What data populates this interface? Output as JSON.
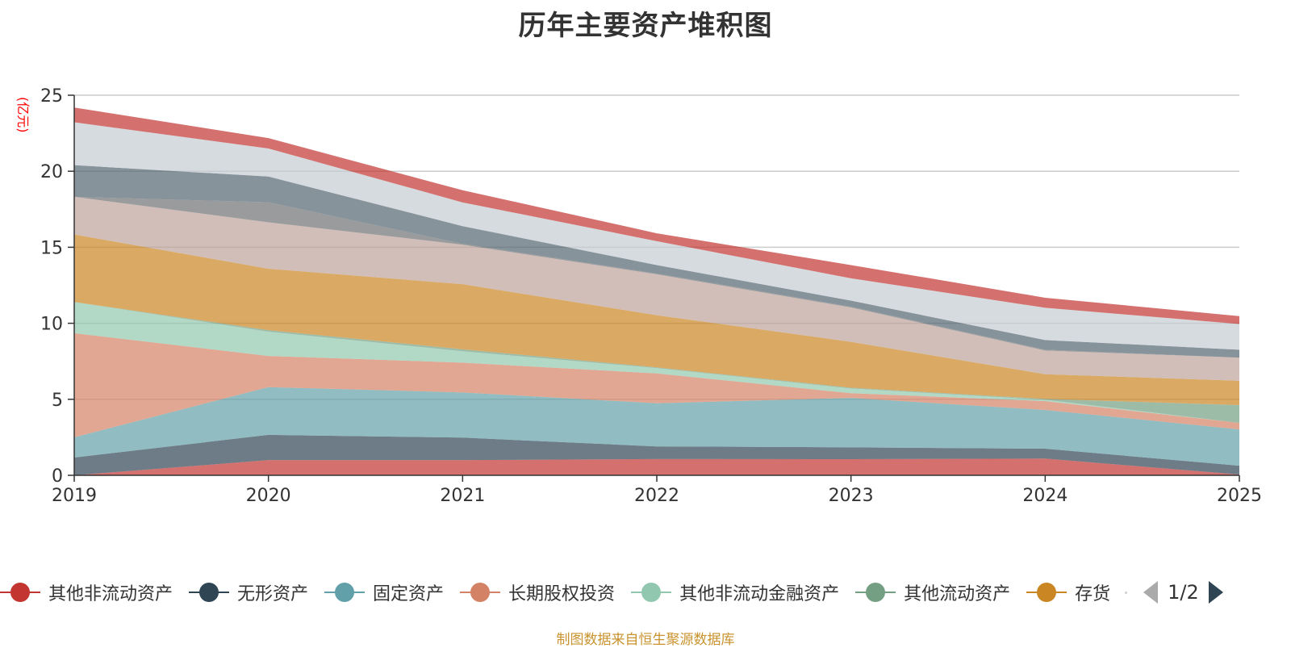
{
  "title": "历年主要资产堆积图",
  "unit_label": "(亿元)",
  "footer": "制图数据来自恒生聚源数据库",
  "pager": {
    "text": "1/2",
    "prev_label": "previous-page",
    "next_label": "next-page"
  },
  "legend": [
    {
      "name": "其他非流动资产",
      "color": "#c23531"
    },
    {
      "name": "无形资产",
      "color": "#2f4554"
    },
    {
      "name": "固定资产",
      "color": "#61a0a8"
    },
    {
      "name": "长期股权投资",
      "color": "#d48265"
    },
    {
      "name": "其他非流动金融资产",
      "color": "#91c7ae"
    },
    {
      "name": "其他流动资产",
      "color": "#749f83"
    },
    {
      "name": "存货",
      "color": "#ca8622"
    }
  ],
  "chart_data": {
    "type": "area",
    "stacked": true,
    "title": "历年主要资产堆积图",
    "xlabel": "",
    "ylabel": "(亿元)",
    "x": [
      "2019",
      "2020",
      "2021",
      "2022",
      "2023",
      "2024",
      "2025"
    ],
    "ylim": [
      0,
      25
    ],
    "yticks": [
      0,
      5,
      10,
      15,
      20,
      25
    ],
    "grid": true,
    "legend_position": "bottom",
    "series": [
      {
        "name": "其他非流动资产",
        "color": "#c23531",
        "values": [
          0.0,
          1.0,
          1.0,
          1.07,
          1.06,
          1.1,
          0.05
        ]
      },
      {
        "name": "无形资产",
        "color": "#2f4554",
        "values": [
          1.17,
          1.66,
          1.48,
          0.83,
          0.78,
          0.65,
          0.58
        ]
      },
      {
        "name": "固定资产",
        "color": "#61a0a8",
        "values": [
          1.33,
          3.14,
          2.97,
          2.84,
          3.25,
          2.55,
          2.39
        ]
      },
      {
        "name": "长期股权投资",
        "color": "#d48265",
        "values": [
          6.85,
          2.05,
          1.96,
          1.96,
          0.31,
          0.58,
          0.43
        ]
      },
      {
        "name": "其他非流动金融资产",
        "color": "#91c7ae",
        "values": [
          2.05,
          1.6,
          0.75,
          0.35,
          0.31,
          0.09,
          0.0
        ]
      },
      {
        "name": "其他流动资产",
        "color": "#749f83",
        "values": [
          0.0,
          0.1,
          0.13,
          0.05,
          0.05,
          0.05,
          1.17
        ]
      },
      {
        "name": "存货",
        "color": "#ca8622",
        "values": [
          4.44,
          4.04,
          4.28,
          3.43,
          3.02,
          1.63,
          1.6
        ]
      },
      {
        "name": null,
        "color": "#bda29a",
        "values": [
          2.48,
          3.05,
          2.6,
          2.69,
          2.26,
          1.56,
          1.52
        ]
      },
      {
        "name": null,
        "color": "#6e7074",
        "values": [
          0.0,
          1.32,
          0.06,
          0.05,
          0.05,
          0.05,
          0.0
        ]
      },
      {
        "name": null,
        "color": "#546570",
        "values": [
          2.08,
          1.69,
          1.16,
          0.56,
          0.4,
          0.64,
          0.52
        ]
      },
      {
        "name": null,
        "color": "#c4ccd3",
        "values": [
          2.82,
          1.85,
          1.56,
          1.57,
          1.47,
          2.12,
          1.69
        ]
      },
      {
        "name": null,
        "color": "#c23531",
        "values": [
          0.97,
          0.68,
          0.8,
          0.52,
          0.87,
          0.66,
          0.52
        ]
      }
    ]
  }
}
